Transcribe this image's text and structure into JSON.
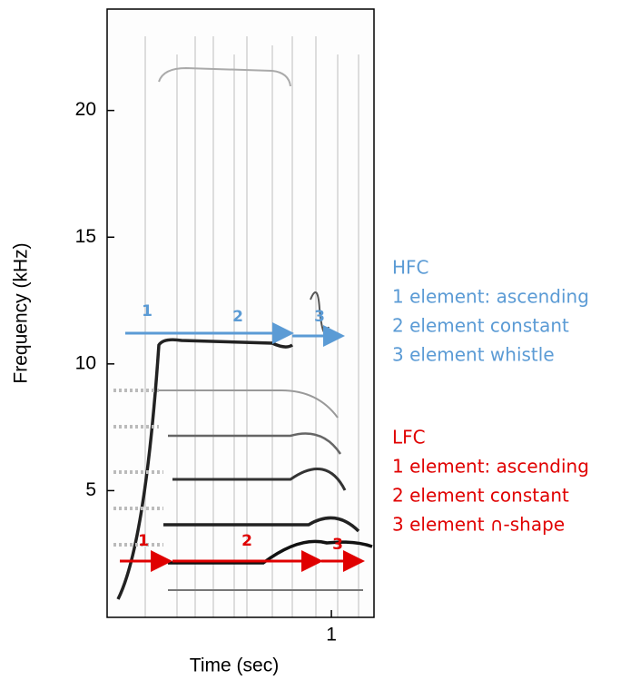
{
  "chart_data": {
    "type": "spectrogram",
    "x_label": "Time (sec)",
    "y_label": "Frequency (kHz)",
    "xlim": [
      0,
      1.19
    ],
    "xticks": [
      1
    ],
    "ylim": [
      0,
      24
    ],
    "yticks": [
      5,
      10,
      15,
      20
    ],
    "annotations": {
      "hfc": {
        "title": "HFC",
        "color": "#5b9bd5",
        "arrow_labels": [
          "1",
          "2",
          "3"
        ],
        "lines": [
          "1 element: ascending",
          "2 element constant",
          "3 element whistle"
        ]
      },
      "lfc": {
        "title": "LFC",
        "color": "#e00000",
        "arrow_labels": [
          "1",
          "2",
          "3"
        ],
        "lines": [
          "1 element: ascending",
          "2 element constant",
          "3 element ∩-shape"
        ]
      }
    }
  }
}
